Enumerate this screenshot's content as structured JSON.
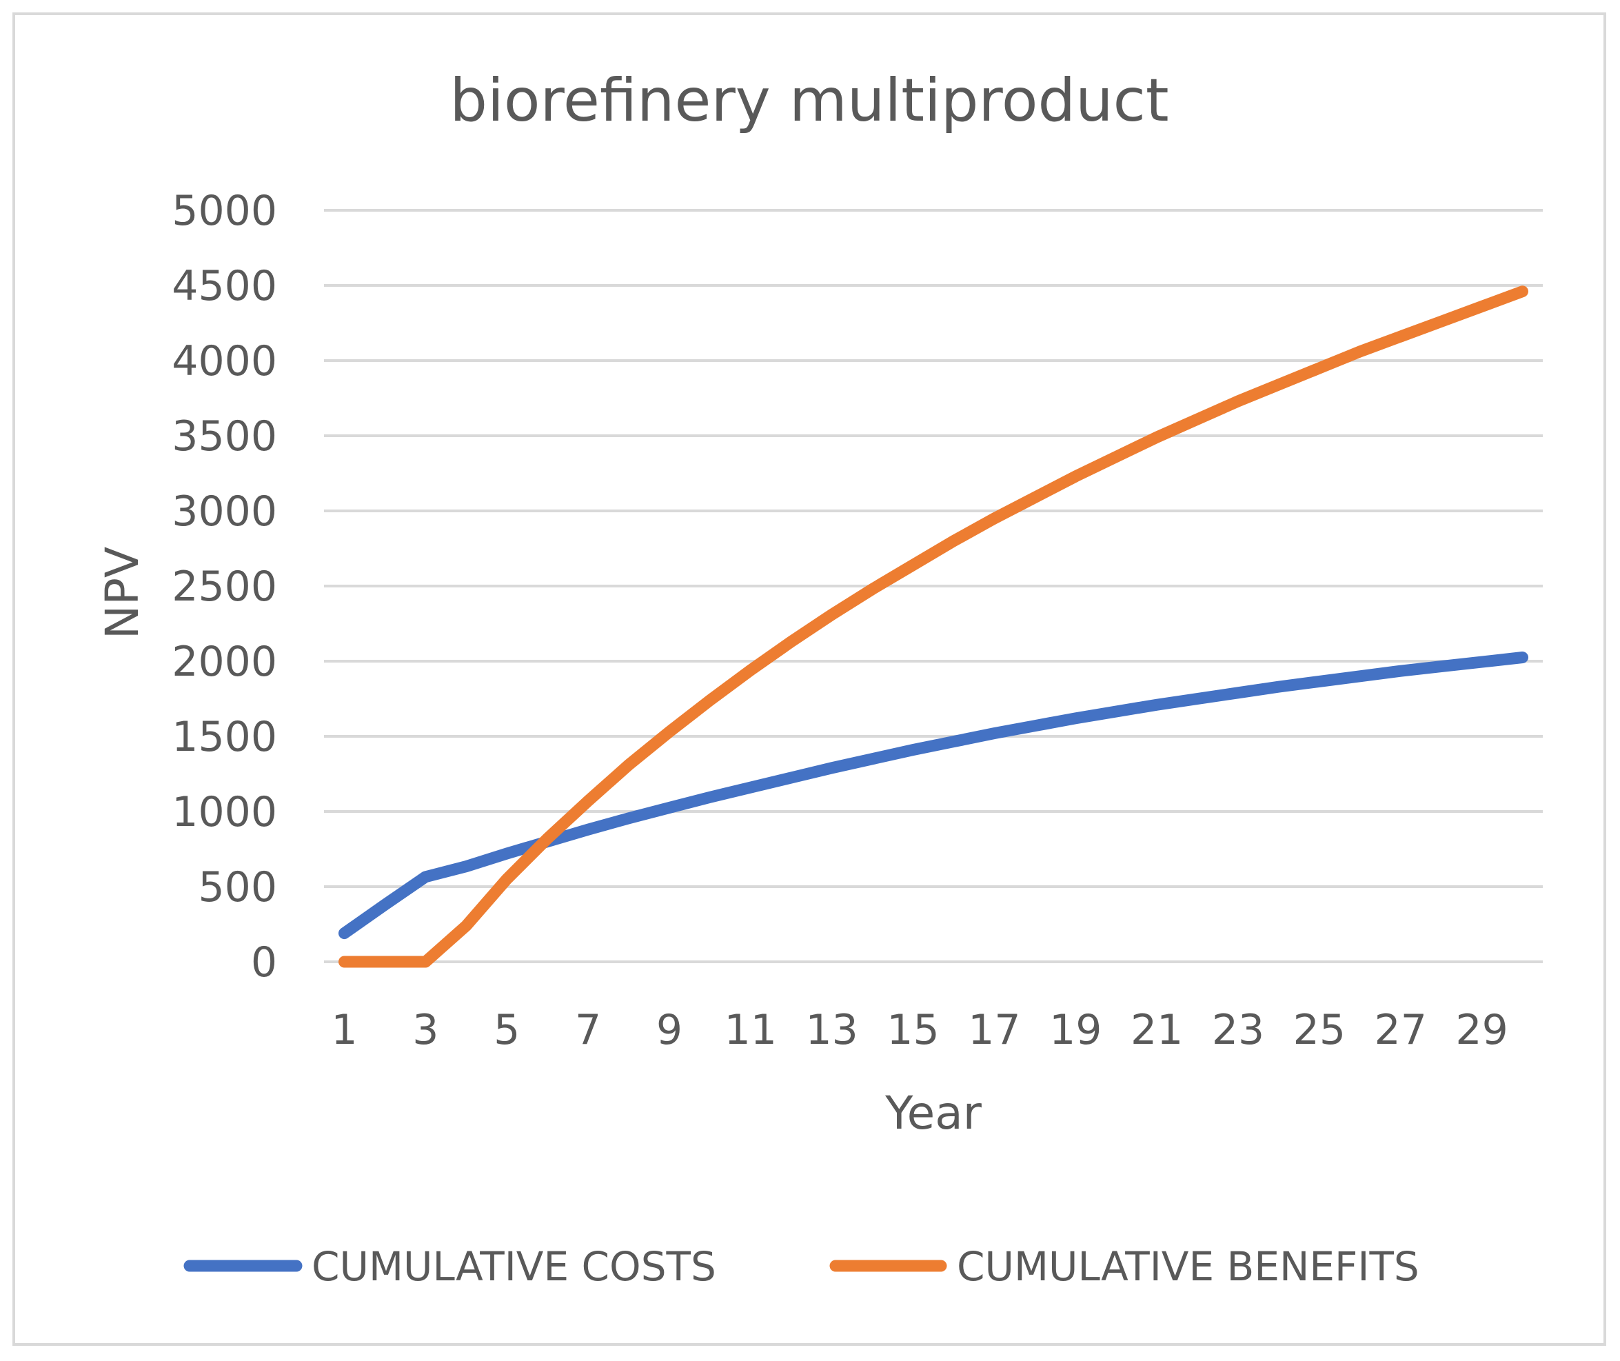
{
  "chart_data": {
    "type": "line",
    "title": "biorefinery multiproduct",
    "xlabel": "Year",
    "ylabel": "NPV",
    "ylim": [
      0,
      5000
    ],
    "yticks": [
      0,
      500,
      1000,
      1500,
      2000,
      2500,
      3000,
      3500,
      4000,
      4500,
      5000
    ],
    "x": [
      1,
      2,
      3,
      4,
      5,
      6,
      7,
      8,
      9,
      10,
      11,
      12,
      13,
      14,
      15,
      16,
      17,
      18,
      19,
      20,
      21,
      22,
      23,
      24,
      25,
      26,
      27,
      28,
      29,
      30
    ],
    "xtick_labels": [
      "1",
      "3",
      "5",
      "7",
      "9",
      "11",
      "13",
      "15",
      "17",
      "19",
      "21",
      "23",
      "25",
      "27",
      "29"
    ],
    "grid": true,
    "legend_position": "bottom",
    "series": [
      {
        "name": "CUMULATIVE COSTS",
        "color": "#4472c4",
        "values": [
          190,
          380,
          565,
          635,
          720,
          800,
          880,
          955,
          1025,
          1095,
          1160,
          1225,
          1290,
          1350,
          1410,
          1465,
          1520,
          1570,
          1620,
          1665,
          1710,
          1750,
          1790,
          1830,
          1865,
          1900,
          1935,
          1965,
          1995,
          2025
        ]
      },
      {
        "name": "CUMULATIVE BENEFITS",
        "color": "#ed7d31",
        "values": [
          0,
          0,
          0,
          240,
          550,
          820,
          1070,
          1310,
          1530,
          1740,
          1940,
          2130,
          2310,
          2480,
          2640,
          2800,
          2950,
          3090,
          3230,
          3360,
          3490,
          3610,
          3730,
          3840,
          3950,
          4060,
          4160,
          4260,
          4360,
          4460
        ]
      }
    ]
  }
}
